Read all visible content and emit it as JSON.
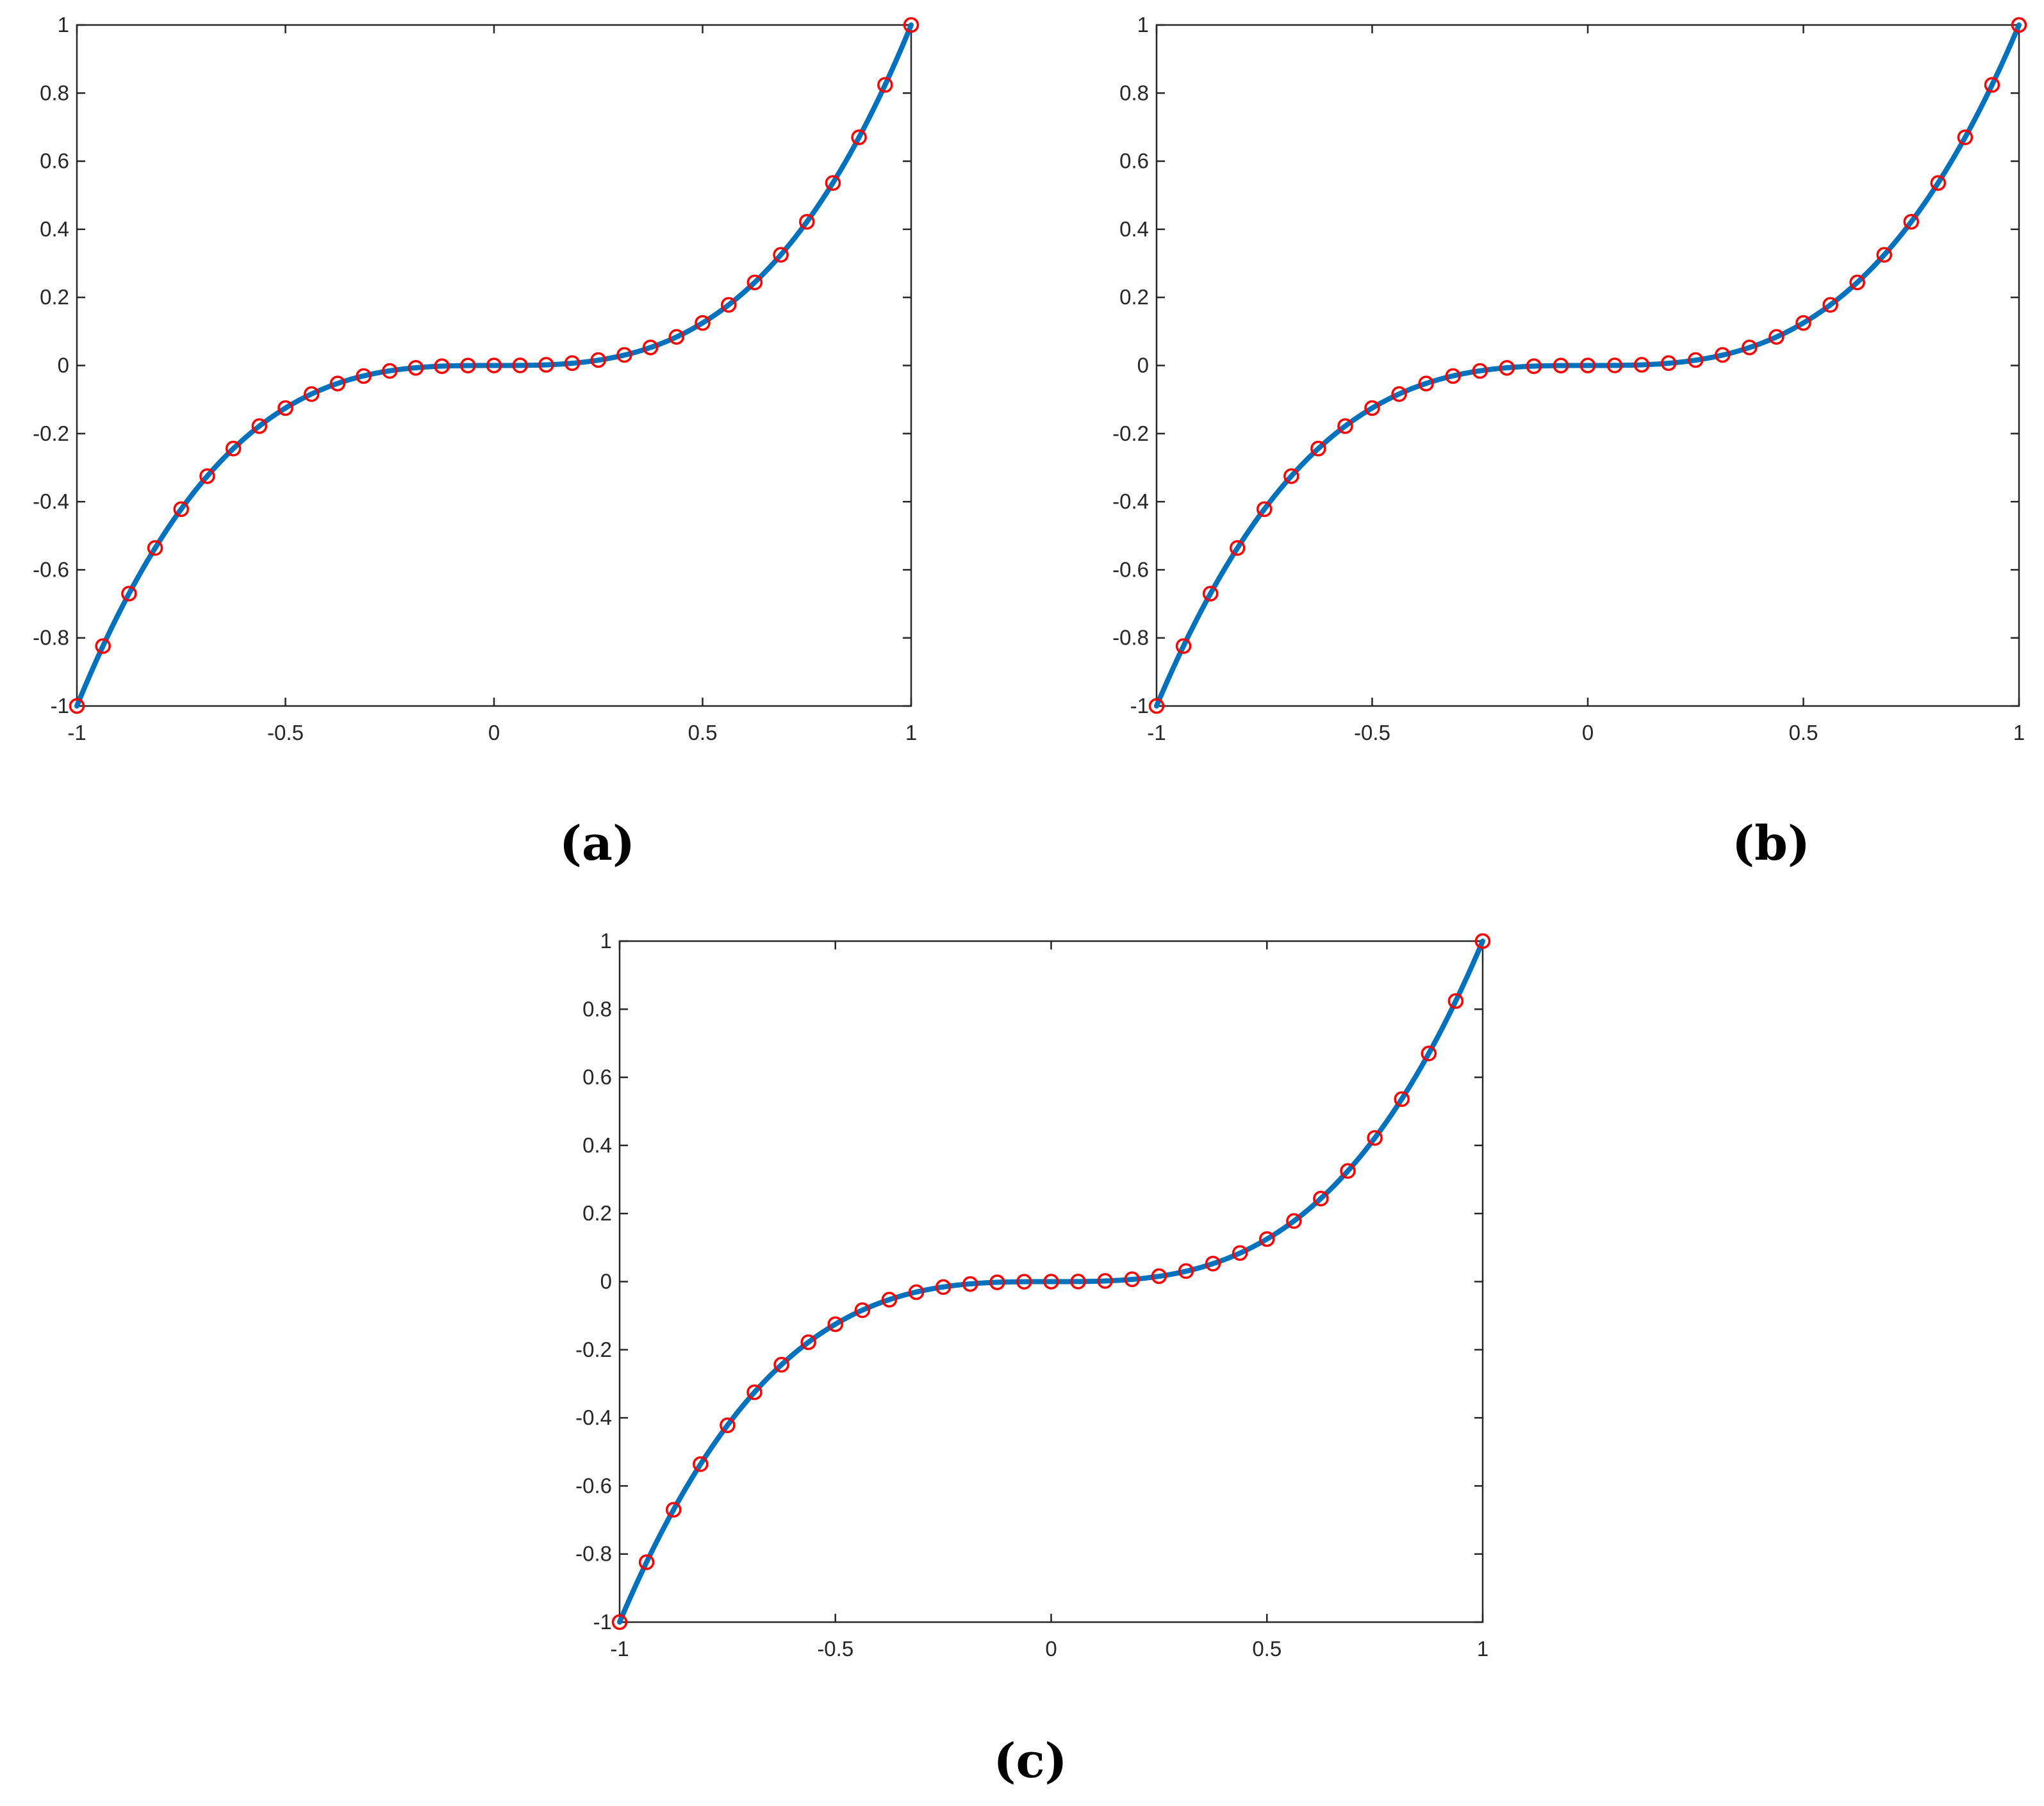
{
  "chart_data": [
    {
      "panel_label": "a",
      "type": "line",
      "xlim": [
        -1,
        1
      ],
      "ylim": [
        -1,
        1
      ],
      "x_ticks": [
        "-1",
        "-0.5",
        "0",
        "0.5",
        "1"
      ],
      "y_ticks": [
        "-1",
        "-0.8",
        "-0.6",
        "-0.4",
        "-0.2",
        "0",
        "0.2",
        "0.4",
        "0.6",
        "0.8",
        "1"
      ],
      "grid": false,
      "series": [
        {
          "kind": "curve",
          "function": "y = x^3",
          "color": "#0072BD"
        },
        {
          "kind": "markers",
          "marker": "circle",
          "color": "#FF0000",
          "x": [
            -1,
            -0.9375,
            -0.875,
            -0.8125,
            -0.75,
            -0.6875,
            -0.625,
            -0.5625,
            -0.5,
            -0.4375,
            -0.375,
            -0.3125,
            -0.25,
            -0.1875,
            -0.125,
            -0.0625,
            0,
            0.0625,
            0.125,
            0.1875,
            0.25,
            0.3125,
            0.375,
            0.4375,
            0.5,
            0.5625,
            0.625,
            0.6875,
            0.75,
            0.8125,
            0.875,
            0.9375,
            1
          ],
          "y": [
            -1,
            -0.824,
            -0.67,
            -0.536,
            -0.422,
            -0.325,
            -0.244,
            -0.178,
            -0.125,
            -0.084,
            -0.053,
            -0.031,
            -0.016,
            -0.007,
            -0.002,
            -0.0002,
            0,
            0.0002,
            0.002,
            0.007,
            0.016,
            0.031,
            0.053,
            0.084,
            0.125,
            0.178,
            0.244,
            0.325,
            0.422,
            0.536,
            0.67,
            0.824,
            1
          ]
        }
      ]
    },
    {
      "panel_label": "b",
      "type": "line",
      "xlim": [
        -1,
        1
      ],
      "ylim": [
        -1,
        1
      ],
      "x_ticks": [
        "-1",
        "-0.5",
        "0",
        "0.5",
        "1"
      ],
      "y_ticks": [
        "-1",
        "-0.8",
        "-0.6",
        "-0.4",
        "-0.2",
        "0",
        "0.2",
        "0.4",
        "0.6",
        "0.8",
        "1"
      ],
      "grid": false,
      "series": [
        {
          "kind": "curve",
          "function": "y = x^3",
          "color": "#0072BD"
        },
        {
          "kind": "markers",
          "marker": "circle",
          "color": "#FF0000",
          "x": [
            -1,
            -0.9375,
            -0.875,
            -0.8125,
            -0.75,
            -0.6875,
            -0.625,
            -0.5625,
            -0.5,
            -0.4375,
            -0.375,
            -0.3125,
            -0.25,
            -0.1875,
            -0.125,
            -0.0625,
            0,
            0.0625,
            0.125,
            0.1875,
            0.25,
            0.3125,
            0.375,
            0.4375,
            0.5,
            0.5625,
            0.625,
            0.6875,
            0.75,
            0.8125,
            0.875,
            0.9375,
            1
          ],
          "y": [
            -1,
            -0.824,
            -0.67,
            -0.536,
            -0.422,
            -0.325,
            -0.244,
            -0.178,
            -0.125,
            -0.084,
            -0.053,
            -0.031,
            -0.016,
            -0.007,
            -0.002,
            -0.0002,
            0,
            0.0002,
            0.002,
            0.007,
            0.016,
            0.031,
            0.053,
            0.084,
            0.125,
            0.178,
            0.244,
            0.325,
            0.422,
            0.536,
            0.67,
            0.824,
            1
          ]
        }
      ]
    },
    {
      "panel_label": "c",
      "type": "line",
      "xlim": [
        -1,
        1
      ],
      "ylim": [
        -1,
        1
      ],
      "x_ticks": [
        "-1",
        "-0.5",
        "0",
        "0.5",
        "1"
      ],
      "y_ticks": [
        "-1",
        "-0.8",
        "-0.6",
        "-0.4",
        "-0.2",
        "0",
        "0.2",
        "0.4",
        "0.6",
        "0.8",
        "1"
      ],
      "grid": false,
      "series": [
        {
          "kind": "curve",
          "function": "y = x^3",
          "color": "#0072BD"
        },
        {
          "kind": "markers",
          "marker": "circle",
          "color": "#FF0000",
          "x": [
            -1,
            -0.9375,
            -0.875,
            -0.8125,
            -0.75,
            -0.6875,
            -0.625,
            -0.5625,
            -0.5,
            -0.4375,
            -0.375,
            -0.3125,
            -0.25,
            -0.1875,
            -0.125,
            -0.0625,
            0,
            0.0625,
            0.125,
            0.1875,
            0.25,
            0.3125,
            0.375,
            0.4375,
            0.5,
            0.5625,
            0.625,
            0.6875,
            0.75,
            0.8125,
            0.875,
            0.9375,
            1
          ],
          "y": [
            -1,
            -0.824,
            -0.67,
            -0.536,
            -0.422,
            -0.325,
            -0.244,
            -0.178,
            -0.125,
            -0.084,
            -0.053,
            -0.031,
            -0.016,
            -0.007,
            -0.002,
            -0.0002,
            0,
            0.0002,
            0.002,
            0.007,
            0.016,
            0.031,
            0.053,
            0.084,
            0.125,
            0.178,
            0.244,
            0.325,
            0.422,
            0.536,
            0.67,
            0.824,
            1
          ]
        }
      ]
    }
  ],
  "captions": [
    "(a)",
    "(b)",
    "(c)"
  ]
}
